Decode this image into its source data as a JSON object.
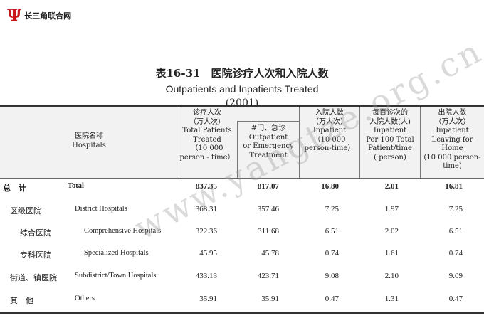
{
  "logo": {
    "text": "长三角联合网",
    "icon": "psi-logo-icon",
    "color": "#c8161d"
  },
  "title": {
    "cn": "表16-31　医院诊疗人次和入院人数",
    "en": "Outpatients and Inpatients Treated",
    "year": "(2001)"
  },
  "watermark": "www.yangtze.org.cn",
  "headers": {
    "hospitals": [
      "医院名称",
      "Hospitals"
    ],
    "total_patients": [
      "诊疗人次",
      "（万人次）",
      "Total Patients",
      "Treated",
      "（10 000",
      "person - time）"
    ],
    "outpatient": [
      "#门、急诊",
      "Outpatient",
      "or Emergency",
      "Treatment"
    ],
    "inpatient": [
      "入院人数",
      "（万人次）",
      "Inpatient",
      "（10 000",
      "person-time）"
    ],
    "per100": [
      "每百诊次的",
      "入院人数(人)",
      "Inpatient",
      "Per 100 Total",
      "Patient/time",
      "( person)"
    ],
    "leaving": [
      "出院人数",
      "（万人次）",
      "Inpatient",
      "Leaving for Home",
      "(10 000 person-",
      "time)"
    ]
  },
  "rows": [
    {
      "cn": "总　计",
      "en": "Total",
      "v": [
        "837.35",
        "817.07",
        "16.80",
        "2.01",
        "16.81"
      ]
    },
    {
      "cn": "区级医院",
      "en": "District Hospitals",
      "v": [
        "368.31",
        "357.46",
        "7.25",
        "1.97",
        "7.25"
      ]
    },
    {
      "cn": "综合医院",
      "en": "Comprehensive Hospitals",
      "v": [
        "322.36",
        "311.68",
        "6.51",
        "2.02",
        "6.51"
      ]
    },
    {
      "cn": "专科医院",
      "en": "Specialized Hospitals",
      "v": [
        "45.95",
        "45.78",
        "0.74",
        "1.61",
        "0.74"
      ]
    },
    {
      "cn": "街道、镇医院",
      "en": "Subdistrict/Town Hospitals",
      "v": [
        "433.13",
        "423.71",
        "9.08",
        "2.10",
        "9.09"
      ]
    },
    {
      "cn": "其　他",
      "en": "Others",
      "v": [
        "35.91",
        "35.91",
        "0.47",
        "1.31",
        "0.47"
      ]
    }
  ]
}
